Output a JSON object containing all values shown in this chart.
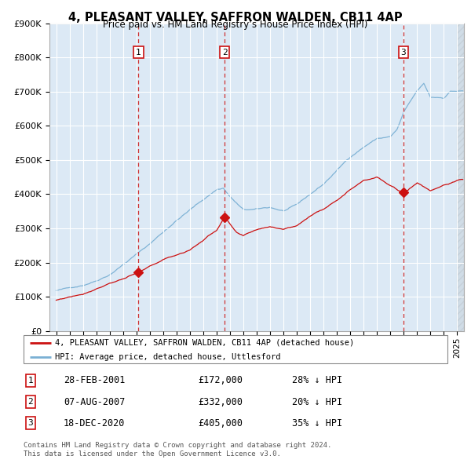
{
  "title": "4, PLEASANT VALLEY, SAFFRON WALDEN, CB11 4AP",
  "subtitle": "Price paid vs. HM Land Registry’s House Price Index (HPI)",
  "legend_line1": "4, PLEASANT VALLEY, SAFFRON WALDEN, CB11 4AP (detached house)",
  "legend_line2": "HPI: Average price, detached house, Uttlesford",
  "sales": [
    {
      "date_label": "28-FEB-2001",
      "date_num": 2001.16,
      "price": 172000,
      "label": "1",
      "hpi_pct": "28% ↓ HPI"
    },
    {
      "date_label": "07-AUG-2007",
      "date_num": 2007.6,
      "price": 332000,
      "label": "2",
      "hpi_pct": "20% ↓ HPI"
    },
    {
      "date_label": "18-DEC-2020",
      "date_num": 2020.96,
      "price": 405000,
      "label": "3",
      "hpi_pct": "35% ↓ HPI"
    }
  ],
  "footer1": "Contains HM Land Registry data © Crown copyright and database right 2024.",
  "footer2": "This data is licensed under the Open Government Licence v3.0.",
  "hpi_color": "#7ab0d4",
  "price_color": "#cc1111",
  "dashed_line_color": "#cc1111",
  "background_color": "#dce9f5",
  "ylim": [
    0,
    900000
  ],
  "yticks": [
    0,
    100000,
    200000,
    300000,
    400000,
    500000,
    600000,
    700000,
    800000,
    900000
  ],
  "xlim_start": 1994.5,
  "xlim_end": 2025.5,
  "hpi_ctrl_x": [
    1995,
    1996,
    1997,
    1998,
    1999,
    2000,
    2001,
    2002,
    2003,
    2004,
    2005,
    2006,
    2007,
    2007.5,
    2008,
    2009,
    2010,
    2011,
    2012,
    2013,
    2014,
    2015,
    2016,
    2017,
    2018,
    2019,
    2020,
    2020.5,
    2021,
    2022,
    2022.5,
    2023,
    2024,
    2024.5,
    2025.3
  ],
  "hpi_ctrl_y": [
    118000,
    125000,
    135000,
    150000,
    170000,
    200000,
    230000,
    260000,
    295000,
    330000,
    360000,
    390000,
    420000,
    425000,
    400000,
    360000,
    360000,
    365000,
    355000,
    370000,
    400000,
    430000,
    470000,
    510000,
    540000,
    565000,
    570000,
    590000,
    640000,
    700000,
    720000,
    680000,
    680000,
    700000,
    700000
  ],
  "price_ctrl_x": [
    1995,
    1997,
    1999,
    2001.16,
    2003,
    2005,
    2007,
    2007.6,
    2008.5,
    2009,
    2010,
    2011,
    2012,
    2013,
    2014,
    2015,
    2016,
    2017,
    2018,
    2019,
    2020,
    2020.96,
    2022,
    2023,
    2024,
    2025.3
  ],
  "price_ctrl_y": [
    90000,
    110000,
    145000,
    172000,
    210000,
    240000,
    295000,
    332000,
    285000,
    275000,
    295000,
    305000,
    300000,
    310000,
    340000,
    360000,
    390000,
    420000,
    450000,
    460000,
    430000,
    405000,
    440000,
    420000,
    440000,
    455000
  ]
}
